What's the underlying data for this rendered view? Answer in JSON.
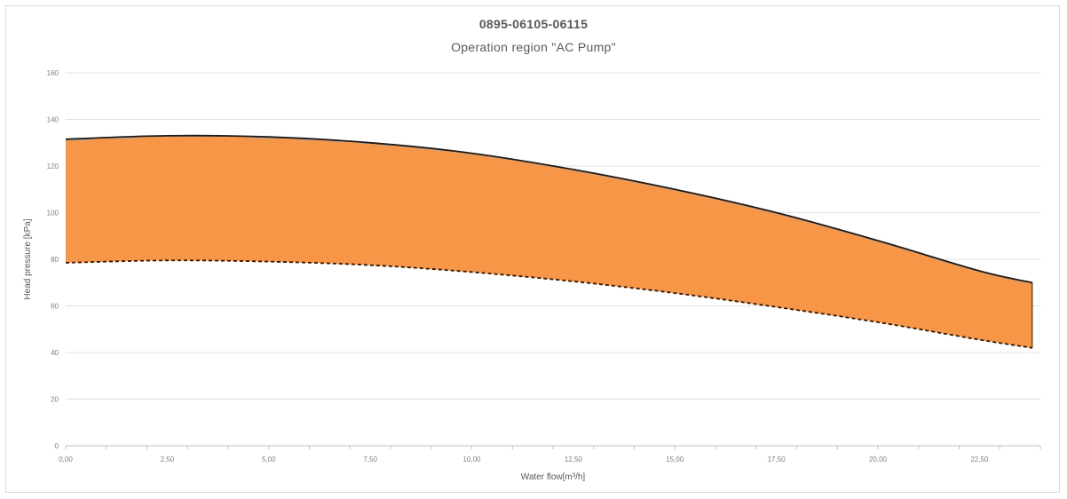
{
  "chart_data": {
    "type": "area",
    "title": "0895-06105-06115",
    "subtitle": "Operation region \"AC Pump\"",
    "xlabel": "Water flow[m³/h]",
    "ylabel": "Head pressure [kPa]",
    "xlim": [
      0,
      24
    ],
    "ylim": [
      0,
      160
    ],
    "x_ticks": [
      "0,00",
      "2,50",
      "5,00",
      "7,50",
      "10,00",
      "12,50",
      "15,00",
      "17,50",
      "20,00",
      "22,50"
    ],
    "y_ticks": [
      "0",
      "20",
      "40",
      "60",
      "80",
      "100",
      "120",
      "140",
      "160"
    ],
    "grid": "horizontal",
    "fill_color": "#f79646",
    "series": [
      {
        "style": "solid",
        "x": [
          0,
          2.5,
          5,
          7.5,
          10,
          12.5,
          15,
          17.5,
          20,
          22.5,
          23.8
        ],
        "y": [
          131.5,
          133,
          132.5,
          130,
          125.5,
          118.5,
          110,
          100,
          88,
          75,
          70
        ]
      },
      {
        "style": "dashed",
        "x": [
          0,
          2.5,
          5,
          7.5,
          10,
          12.5,
          15,
          17.5,
          20,
          22.5,
          23.8
        ],
        "y": [
          78.5,
          79.5,
          79,
          77.5,
          74.5,
          70.5,
          65.5,
          59.5,
          53,
          45.5,
          42
        ]
      }
    ]
  }
}
